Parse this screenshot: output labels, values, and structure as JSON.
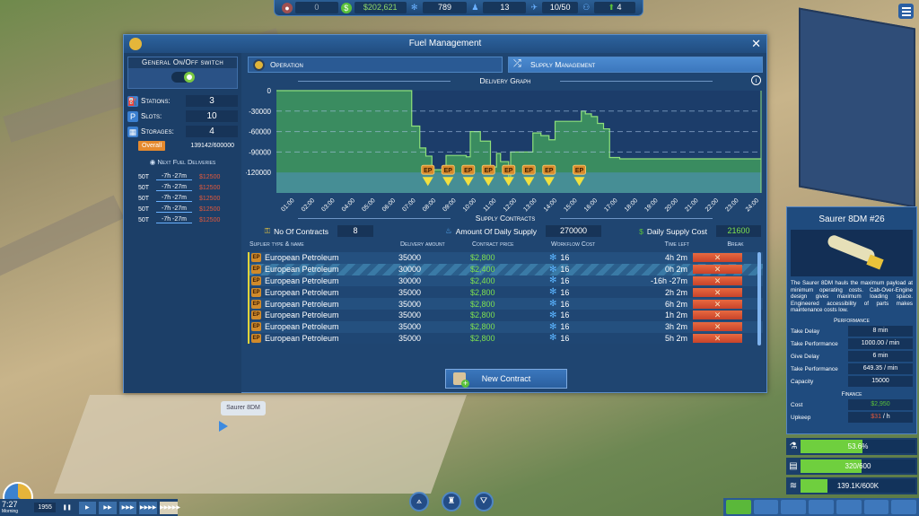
{
  "topbar": {
    "items": [
      {
        "icon": "research-icon",
        "value": "0"
      },
      {
        "icon": "money-icon",
        "value": "$202,621"
      },
      {
        "icon": "gear-icon",
        "value": "789"
      },
      {
        "icon": "passenger-icon",
        "value": "13"
      },
      {
        "icon": "plane-icon",
        "value": "10/50"
      },
      {
        "icon": "staff-icon",
        "value": "4"
      }
    ]
  },
  "window": {
    "title": "Fuel Management",
    "close": "✕"
  },
  "left_panel": {
    "switch_label": "General On/Off switch",
    "switch_on": true,
    "stats": [
      {
        "icon": "station-icon",
        "glyph": "⛽",
        "label": "Stations:",
        "value": "3"
      },
      {
        "icon": "parking-icon",
        "glyph": "P",
        "label": "Slots:",
        "value": "10"
      },
      {
        "icon": "storage-icon",
        "glyph": "▦",
        "label": "Storages:",
        "value": "4"
      }
    ],
    "overall_label": "Overall",
    "overall_value": "139142/600000",
    "next_deliveries_title": "Next Fuel Deliveries",
    "deliveries": [
      {
        "amount": "50T",
        "time": "-7h -27m",
        "price": "$12500"
      },
      {
        "amount": "50T",
        "time": "-7h -27m",
        "price": "$12500"
      },
      {
        "amount": "50T",
        "time": "-7h -27m",
        "price": "$12500"
      },
      {
        "amount": "50T",
        "time": "-7h -27m",
        "price": "$12500"
      },
      {
        "amount": "50T",
        "time": "-7h -27m",
        "price": "$12500"
      }
    ]
  },
  "tabs": [
    {
      "label": "Operation",
      "active": false
    },
    {
      "label": "Supply Management",
      "active": true
    }
  ],
  "delivery_graph": {
    "title": "Delivery Graph",
    "info": "i",
    "marker_label": "EP"
  },
  "chart_data": {
    "type": "area",
    "title": "Delivery Graph",
    "xlabel": "",
    "ylabel": "",
    "y_ticks": [
      "0",
      "-30000",
      "-60000",
      "-90000",
      "-120000"
    ],
    "ylim": [
      -150000,
      0
    ],
    "x_ticks": [
      "01:00",
      "02:00",
      "03:00",
      "04:00",
      "05:00",
      "06:00",
      "07:00",
      "08:00",
      "09:00",
      "10:00",
      "11:00",
      "12:00",
      "13:00",
      "14:00",
      "15:00",
      "16:00",
      "17:00",
      "18:00",
      "19:00",
      "20:00",
      "21:00",
      "22:00",
      "23:00",
      "24:00"
    ],
    "grid": true,
    "series": [
      {
        "name": "Fuel level",
        "x": [
          0.5,
          7.2,
          7.2,
          7.6,
          7.6,
          7.9,
          7.9,
          8.2,
          8.2,
          8.9,
          8.9,
          9.9,
          9.9,
          10.1,
          10.1,
          10.6,
          10.6,
          11.1,
          11.1,
          11.4,
          11.4,
          11.6,
          11.6,
          12.0,
          12.0,
          12.1,
          12.1,
          13.2,
          13.2,
          13.6,
          13.6,
          14.0,
          14.0,
          14.3,
          14.3,
          15.6,
          15.6,
          15.8,
          15.8,
          16.1,
          16.1,
          16.4,
          16.4,
          16.7,
          16.7,
          17.0,
          17.0,
          17.5,
          17.5,
          24.5
        ],
        "values": [
          0,
          0,
          -52000,
          -52000,
          -84000,
          -84000,
          -96000,
          -96000,
          -116000,
          -116000,
          -95000,
          -95000,
          -97000,
          -97000,
          -60000,
          -60000,
          -74000,
          -74000,
          -112000,
          -112000,
          -92000,
          -92000,
          -104000,
          -104000,
          -128000,
          -128000,
          -90000,
          -90000,
          -62000,
          -62000,
          -66000,
          -66000,
          -72000,
          -72000,
          -45000,
          -45000,
          -30000,
          -30000,
          -34000,
          -34000,
          -38000,
          -38000,
          -48000,
          -48000,
          -56000,
          -56000,
          -98000,
          -98000,
          -100000,
          -100000
        ]
      }
    ],
    "markers": [
      {
        "label": "EP",
        "x": 8.0
      },
      {
        "label": "EP",
        "x": 9.0
      },
      {
        "label": "EP",
        "x": 10.0
      },
      {
        "label": "EP",
        "x": 11.0
      },
      {
        "label": "EP",
        "x": 12.0
      },
      {
        "label": "EP",
        "x": 13.0
      },
      {
        "label": "EP",
        "x": 14.0
      },
      {
        "label": "EP",
        "x": 15.5
      }
    ],
    "threshold_band": [
      -150000,
      -120000
    ]
  },
  "supply_contracts": {
    "title": "Supply Contracts",
    "no_of_contracts_label": "No Of Contracts",
    "no_of_contracts": "8",
    "daily_supply_label": "Amount Of Daily Supply",
    "daily_supply": "270000",
    "daily_cost_label": "Daily Supply Cost",
    "daily_cost": "21600",
    "columns": [
      "Suplier type & name",
      "Delivery amount",
      "Contract price",
      "Workflow Cost",
      "Time left",
      "Break"
    ],
    "rows": [
      {
        "name": "European Petroleum",
        "amount": "35000",
        "price": "$2,800",
        "workflow": "16",
        "time_left": "4h 2m",
        "break": "✕"
      },
      {
        "name": "European Petroleum",
        "amount": "30000",
        "price": "$2,400",
        "workflow": "16",
        "time_left": "0h 2m",
        "break": "✕",
        "active": true
      },
      {
        "name": "European Petroleum",
        "amount": "30000",
        "price": "$2,400",
        "workflow": "16",
        "time_left": "-16h -27m",
        "break": "✕"
      },
      {
        "name": "European Petroleum",
        "amount": "35000",
        "price": "$2,800",
        "workflow": "16",
        "time_left": "2h 2m",
        "break": "✕"
      },
      {
        "name": "European Petroleum",
        "amount": "35000",
        "price": "$2,800",
        "workflow": "16",
        "time_left": "6h 2m",
        "break": "✕"
      },
      {
        "name": "European Petroleum",
        "amount": "35000",
        "price": "$2,800",
        "workflow": "16",
        "time_left": "1h 2m",
        "break": "✕"
      },
      {
        "name": "European Petroleum",
        "amount": "35000",
        "price": "$2,800",
        "workflow": "16",
        "time_left": "3h 2m",
        "break": "✕"
      },
      {
        "name": "European Petroleum",
        "amount": "35000",
        "price": "$2,800",
        "workflow": "16",
        "time_left": "5h 2m",
        "break": "✕"
      }
    ],
    "new_contract_label": "New Contract"
  },
  "vehicle_panel": {
    "title": "Saurer 8DM #26",
    "description": "The Saurer 8DM hauls the maximum payload at minimum operating costs. Cab-Over-Engine design gives maximum loading space. Engineered accessibility of parts makes maintenance costs low.",
    "performance_title": "Performance",
    "performance": [
      {
        "label": "Take Delay",
        "value": "8 min"
      },
      {
        "label": "Take Performance",
        "value": "1000.00 / min"
      },
      {
        "label": "Give Delay",
        "value": "6 min"
      },
      {
        "label": "Take Performance",
        "value": "649.35 / min"
      },
      {
        "label": "Capacity",
        "value": "15000"
      }
    ],
    "finance_title": "Finance",
    "cost_label": "Cost",
    "cost_value": "$2,950",
    "upkeep_label": "Upkeep",
    "upkeep_value": "$31",
    "upkeep_unit": " / h"
  },
  "resource_bars": [
    {
      "icon": "flask-icon",
      "glyph": "⚗",
      "text": "53.6%",
      "fill": 53.6
    },
    {
      "icon": "cargo-icon",
      "glyph": "▤",
      "text": "320/600",
      "fill": 53.3
    },
    {
      "icon": "fuel-icon",
      "glyph": "≋",
      "text": "139.1K/600K",
      "fill": 23.2
    }
  ],
  "bottom_left": {
    "time": "7:27",
    "period": "Morning",
    "year": "1955",
    "pause": "❚❚",
    "speeds": [
      "▶",
      "▶▶",
      "▶▶▶",
      "▶▶▶▶",
      "▶▶▶▶▶"
    ]
  },
  "tooltip": {
    "label": "Saurer 8DM"
  },
  "colors": {
    "accent": "#3b77bd",
    "positive": "#7ee04f",
    "negative": "#e4593b",
    "chart_fill": "#3f9a5e"
  }
}
